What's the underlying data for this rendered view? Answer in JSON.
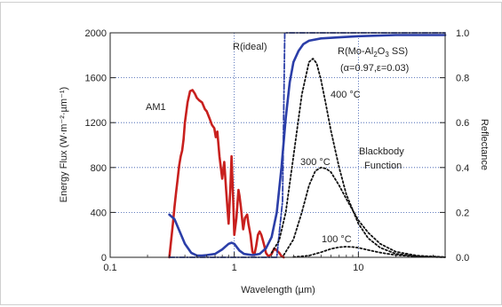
{
  "chart_data": {
    "type": "line",
    "xlabel": "Wavelength (µm)",
    "ylabel_left": "Energy Flux (W·m⁻²·µm⁻¹)",
    "ylabel_right": "Reflectance",
    "x_scale": "log",
    "xlim": [
      0.1,
      50
    ],
    "ylim_left": [
      0,
      2000
    ],
    "ylim_right": [
      0,
      1.0
    ],
    "x_ticks": [
      "0.1",
      "1",
      "10"
    ],
    "y_ticks_left": [
      "0",
      "400",
      "800",
      "1200",
      "1600",
      "2000"
    ],
    "y_ticks_right": [
      "0.0",
      "0.2",
      "0.4",
      "0.6",
      "0.8",
      "1.0"
    ],
    "grid": true,
    "annotations": {
      "am1": "AM1",
      "r_ideal": "R(ideal)",
      "r_real_a": "R(Mo-Al",
      "r_real_sub": "2",
      "r_real_b": "O",
      "r_real_sub2": "3",
      "r_real_c": " SS)",
      "alpha_eps": "(α=0.97,ε=0.03)",
      "t400": "400 °C",
      "t300": "300 °C",
      "t100": "100 °C",
      "blackbody_1": "Blackbody",
      "blackbody_2": "Function"
    },
    "colors": {
      "am1": "#c8201e",
      "reflectance": "#2b3ea8",
      "blackbody": "#111111",
      "grid": "#3355aa"
    },
    "series": [
      {
        "axis": "left",
        "color": "#c8201e",
        "style": "solid",
        "x": [
          0.3,
          0.31,
          0.32,
          0.33,
          0.34,
          0.35,
          0.36,
          0.37,
          0.38,
          0.39,
          0.4,
          0.42,
          0.44,
          0.46,
          0.48,
          0.5,
          0.52,
          0.55,
          0.58,
          0.6,
          0.63,
          0.66,
          0.69,
          0.71,
          0.73,
          0.76,
          0.8,
          0.83,
          0.86,
          0.9,
          0.93,
          0.95,
          0.98,
          1.0,
          1.04,
          1.08,
          1.1,
          1.13,
          1.18,
          1.22,
          1.27,
          1.3,
          1.35,
          1.4,
          1.45,
          1.5,
          1.55,
          1.6,
          1.65,
          1.7,
          1.75,
          1.8,
          1.85,
          1.9,
          2.0,
          2.1,
          2.2,
          2.3,
          2.4,
          2.5
        ],
        "y": [
          0,
          150,
          300,
          450,
          580,
          700,
          820,
          900,
          950,
          1050,
          1200,
          1380,
          1480,
          1490,
          1460,
          1420,
          1400,
          1380,
          1320,
          1300,
          1240,
          1180,
          1150,
          1070,
          1120,
          900,
          700,
          850,
          600,
          300,
          620,
          900,
          500,
          200,
          350,
          600,
          550,
          450,
          250,
          350,
          380,
          300,
          200,
          50,
          20,
          100,
          200,
          230,
          200,
          150,
          100,
          40,
          20,
          10,
          30,
          80,
          60,
          40,
          10,
          0
        ]
      },
      {
        "axis": "right",
        "color": "#2b3ea8",
        "style": "solid",
        "x": [
          0.3,
          0.33,
          0.36,
          0.4,
          0.45,
          0.5,
          0.55,
          0.6,
          0.7,
          0.8,
          0.9,
          0.95,
          1.0,
          1.1,
          1.2,
          1.4,
          1.6,
          1.8,
          2.0,
          2.2,
          2.4,
          2.6,
          2.8,
          3.0,
          3.3,
          3.6,
          4.0,
          5.0,
          7.0,
          10.0,
          20.0,
          50.0
        ],
        "y": [
          0.19,
          0.17,
          0.12,
          0.06,
          0.02,
          0.008,
          0.008,
          0.01,
          0.015,
          0.035,
          0.06,
          0.065,
          0.06,
          0.03,
          0.015,
          0.01,
          0.015,
          0.04,
          0.09,
          0.2,
          0.4,
          0.62,
          0.78,
          0.87,
          0.92,
          0.95,
          0.965,
          0.975,
          0.98,
          0.985,
          0.99,
          0.99
        ]
      },
      {
        "axis": "right",
        "color": "#2b3ea8",
        "style": "dashdot",
        "x": [
          0.3,
          2.2,
          2.45,
          2.55,
          50.0
        ],
        "y": [
          0.0,
          0.0,
          0.25,
          1.0,
          1.0
        ]
      },
      {
        "axis": "left",
        "color": "#111111",
        "style": "dotted",
        "x": [
          2.0,
          2.3,
          2.6,
          3.0,
          3.5,
          4.0,
          4.3,
          4.6,
          5.0,
          5.5,
          6.0,
          7.0,
          8.0,
          10.0,
          12.0,
          15.0,
          20.0,
          30.0,
          40.0,
          50.0
        ],
        "y": [
          40,
          150,
          400,
          900,
          1450,
          1740,
          1770,
          1730,
          1580,
          1350,
          1130,
          800,
          560,
          300,
          170,
          85,
          32,
          8,
          3,
          1
        ]
      },
      {
        "axis": "left",
        "color": "#111111",
        "style": "dotted",
        "x": [
          2.5,
          3.0,
          3.5,
          4.0,
          4.5,
          5.0,
          5.5,
          6.0,
          7.0,
          8.0,
          10.0,
          12.0,
          15.0,
          20.0,
          30.0,
          50.0
        ],
        "y": [
          20,
          160,
          400,
          640,
          770,
          800,
          790,
          760,
          640,
          520,
          330,
          220,
          120,
          50,
          14,
          2
        ],
        "name": ""
      },
      {
        "axis": "left",
        "color": "#111111",
        "style": "dotted",
        "x": [
          3.0,
          4.0,
          5.0,
          6.0,
          7.0,
          8.0,
          9.0,
          10.0,
          12.0,
          15.0,
          20.0,
          30.0,
          50.0
        ],
        "y": [
          2,
          15,
          45,
          75,
          90,
          95,
          92,
          85,
          65,
          42,
          20,
          6,
          1
        ]
      }
    ]
  }
}
